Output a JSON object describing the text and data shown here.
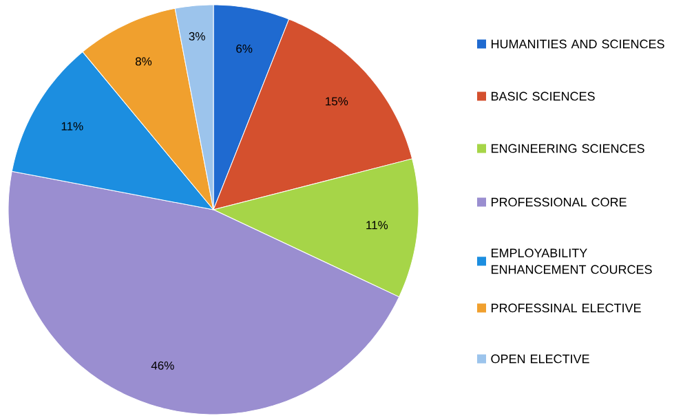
{
  "chart_data": {
    "type": "pie",
    "categories": [
      "HUMANITIES AND SCIENCES",
      "BASIC SCIENCES",
      "ENGINEERING SCIENCES",
      "PROFESSIONAL CORE",
      "EMPLOYABILITY ENHANCEMENT COURCES",
      "PROFESSINAL ELECTIVE",
      "OPEN ELECTIVE"
    ],
    "values": [
      6,
      15,
      11,
      46,
      11,
      8,
      3
    ],
    "colors": [
      "#1f6ad0",
      "#d4502e",
      "#a6d548",
      "#9a8ed0",
      "#1c8ee0",
      "#f0a02e",
      "#9cc4ec"
    ],
    "value_labels": [
      "6%",
      "15%",
      "11%",
      "46%",
      "11%",
      "8%",
      "3%"
    ],
    "legend": "right"
  }
}
